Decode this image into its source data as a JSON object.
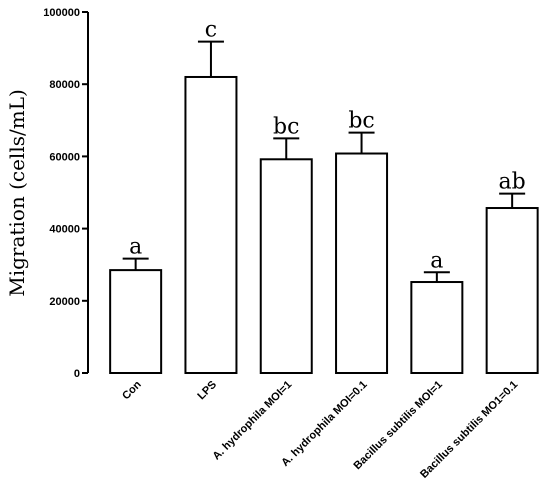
{
  "chart_data": {
    "type": "bar",
    "title": "",
    "xlabel": "",
    "ylabel": "Migration (cells/mL)",
    "ylim": [
      0,
      100000
    ],
    "yticks": [
      0,
      20000,
      40000,
      60000,
      80000,
      100000
    ],
    "ytick_labels": [
      "0",
      "20000",
      "40000",
      "60000",
      "80000",
      "100000"
    ],
    "categories": [
      "Con",
      "LPS",
      "A. hydrophila MOI=1",
      "A. hydrophila MOI=0.1",
      "Bacillus subtilis MOI=1",
      "Bacillus subtilis MO1=0.1"
    ],
    "values": [
      28500,
      82000,
      59200,
      60800,
      25200,
      45700
    ],
    "errors": [
      3200,
      9800,
      5800,
      5800,
      2700,
      4000
    ],
    "significance_labels": [
      "a",
      "c",
      "bc",
      "bc",
      "a",
      "ab"
    ],
    "grid": false,
    "legend": "none",
    "bar_fill": "#ffffff",
    "bar_stroke": "#000000"
  }
}
